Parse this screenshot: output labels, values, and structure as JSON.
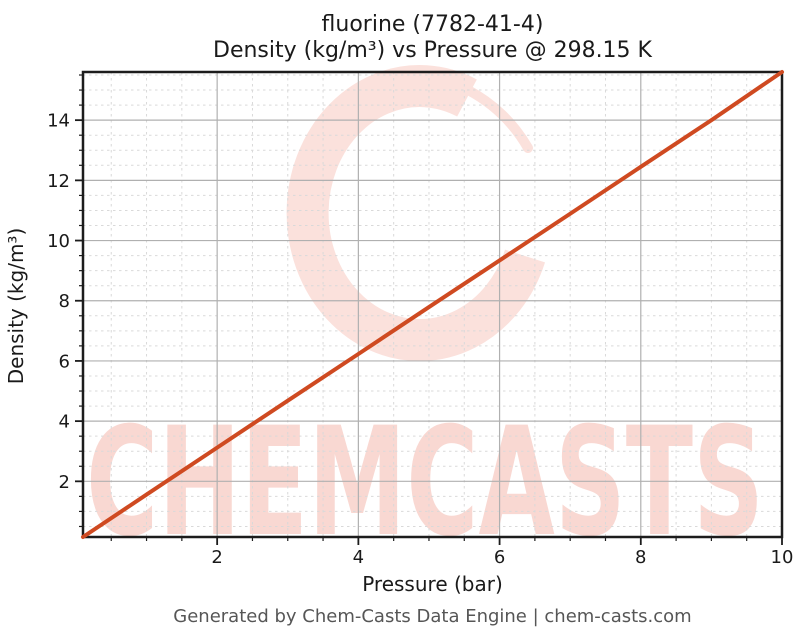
{
  "title": {
    "line1": "fluorine (7782-41-4)",
    "line2": "Density (kg/m³) vs Pressure @ 298.15 K"
  },
  "footer": "Generated by Chem-Casts Data Engine | chem-casts.com",
  "watermark": {
    "text": "CHEMCASTS",
    "logo": "c-swirl-logo"
  },
  "colors": {
    "series_line": "#cf4a21",
    "major_grid": "#b0b0b0",
    "minor_grid": "#d9d9d9",
    "spine": "#1c1c1c",
    "tick": "#1c1c1c",
    "watermark_text": "#f9d8d2",
    "watermark_logo": "#fbe1dc",
    "footer_text": "#565656"
  },
  "chart_data": {
    "type": "line",
    "title": "fluorine (7782-41-4)\nDensity (kg/m³) vs Pressure @ 298.15 K",
    "xlabel": "Pressure (bar)",
    "ylabel": "Density (kg/m³)",
    "xlim": [
      0.1,
      10
    ],
    "ylim": [
      0.15,
      15.6
    ],
    "x_major_ticks": [
      2,
      4,
      6,
      8,
      10
    ],
    "y_major_ticks": [
      2,
      4,
      6,
      8,
      10,
      12,
      14
    ],
    "minor_tick_step": 0.5,
    "grid": "major-solid, minor-dashed",
    "legend": "none",
    "series": [
      {
        "name": "density",
        "color": "#cf4a21",
        "x": [
          0.1,
          1,
          2,
          3,
          4,
          5,
          6,
          7,
          8,
          9,
          10
        ],
        "y": [
          0.15,
          1.56,
          3.12,
          4.68,
          6.23,
          7.79,
          9.34,
          10.89,
          12.45,
          14.0,
          15.6
        ]
      }
    ]
  }
}
